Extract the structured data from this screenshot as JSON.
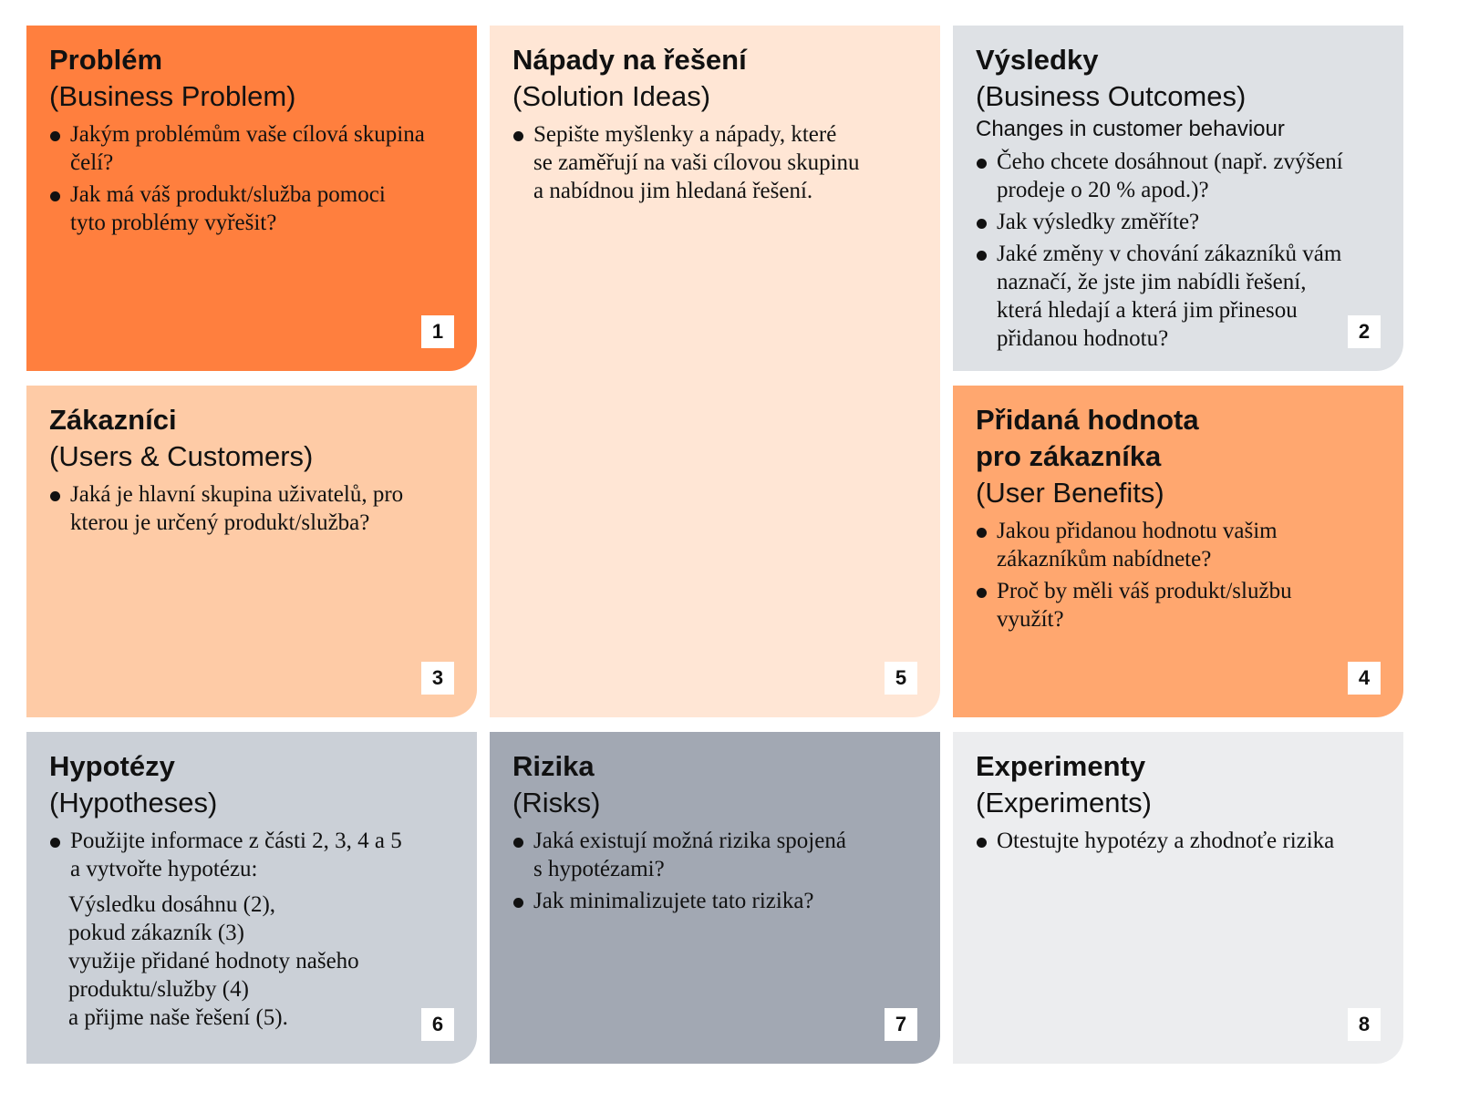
{
  "panels": [
    {
      "key": "problem",
      "color": "#FF7F3E",
      "number": "1",
      "title": [
        "Problém"
      ],
      "subtitle": "(Business Problem)",
      "extra": null,
      "bullets": [
        [
          "Jakým problémům vaše cílová skupina",
          "čelí?"
        ],
        [
          "Jak má váš produkt/služba pomoci",
          "tyto problémy vyřešit?"
        ]
      ],
      "hypothesis": null
    },
    {
      "key": "solution-ideas",
      "color": "#FFE6D5",
      "number": "5",
      "title": [
        "Nápady na řešení"
      ],
      "subtitle": "(Solution Ideas)",
      "extra": null,
      "bullets": [
        [
          "Sepište myšlenky a nápady, které",
          "se zaměřují na vaši cílovou skupinu",
          "a nabídnou jim hledaná řešení."
        ]
      ],
      "hypothesis": null
    },
    {
      "key": "business-outcomes",
      "color": "#DEE1E5",
      "number": "2",
      "title": [
        "Výsledky"
      ],
      "subtitle": "(Business Outcomes)",
      "extra": "Changes in customer behaviour",
      "bullets": [
        [
          "Čeho chcete dosáhnout (např. zvýšení",
          "prodeje o 20 % apod.)?"
        ],
        [
          "Jak výsledky změříte?"
        ],
        [
          "Jaké změny v chování zákazníků vám",
          "naznačí, že jste jim nabídli řešení,",
          "která hledají a která jim přinesou",
          "přidanou hodnotu?"
        ]
      ],
      "hypothesis": null
    },
    {
      "key": "users-customers",
      "color": "#FECBA6",
      "number": "3",
      "title": [
        "Zákazníci"
      ],
      "subtitle": "(Users & Customers)",
      "extra": null,
      "bullets": [
        [
          "Jaká je hlavní skupina uživatelů, pro",
          "kterou je určený produkt/služba?"
        ]
      ],
      "hypothesis": null
    },
    {
      "key": "user-benefits",
      "color": "#FFA76F",
      "number": "4",
      "title": [
        "Přidaná hodnota",
        "pro zákazníka"
      ],
      "subtitle": "(User Benefits)",
      "extra": null,
      "bullets": [
        [
          "Jakou přidanou hodnotu vašim",
          "zákazníkům nabídnete?"
        ],
        [
          "Proč by měli váš produkt/službu",
          "využít?"
        ]
      ],
      "hypothesis": null
    },
    {
      "key": "hypotheses",
      "color": "#CBD0D7",
      "number": "6",
      "title": [
        "Hypotézy"
      ],
      "subtitle": "(Hypotheses)",
      "extra": null,
      "bullets": [
        [
          "Použijte informace z části 2, 3, 4 a 5",
          "a vytvořte hypotézu:"
        ]
      ],
      "hypothesis": [
        "Výsledku dosáhnu (2),",
        "pokud zákazník (3)",
        "využije přidané hodnoty našeho",
        "produktu/služby (4)",
        "a přijme naše řešení (5)."
      ]
    },
    {
      "key": "risks",
      "color": "#A2A8B3",
      "number": "7",
      "title": [
        "Rizika"
      ],
      "subtitle": "(Risks)",
      "extra": null,
      "bullets": [
        [
          "Jaká existují možná rizika spojená",
          "s hypotézami?"
        ],
        [
          "Jak minimalizujete tato rizika?"
        ]
      ],
      "hypothesis": null
    },
    {
      "key": "experiments",
      "color": "#ECEDEF",
      "number": "8",
      "title": [
        "Experimenty"
      ],
      "subtitle": "(Experiments)",
      "extra": null,
      "bullets": [
        [
          "Otestujte hypotézy a zhodnoťe rizika"
        ]
      ],
      "hypothesis": null
    }
  ]
}
